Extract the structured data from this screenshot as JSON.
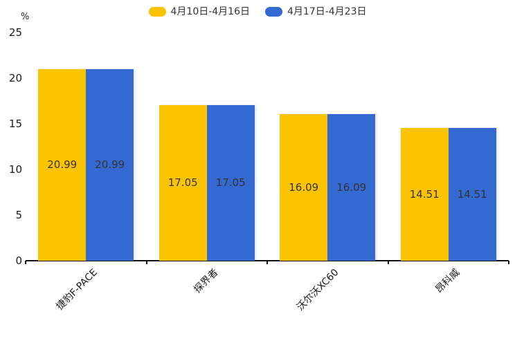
{
  "chart_data": {
    "type": "bar",
    "title": "",
    "ylabel": "%",
    "ylim": [
      0,
      25
    ],
    "yticks": [
      0,
      5,
      10,
      15,
      20,
      25
    ],
    "categories": [
      "捷豹F-PACE",
      "探界者",
      "沃尔沃XC60",
      "昂科威"
    ],
    "series": [
      {
        "name": "4月10日-4月16日",
        "color": "#FCC400",
        "values": [
          20.99,
          17.05,
          16.09,
          14.51
        ]
      },
      {
        "name": "4月17日-4月23日",
        "color": "#3469D1",
        "values": [
          20.99,
          17.05,
          16.09,
          14.51
        ]
      }
    ],
    "legend_position": "top",
    "grid": false,
    "value_label_position": "inside-center",
    "value_label_color": "#333333",
    "axis_color": "#111111",
    "tick_label_color": "#1a1a1a"
  }
}
